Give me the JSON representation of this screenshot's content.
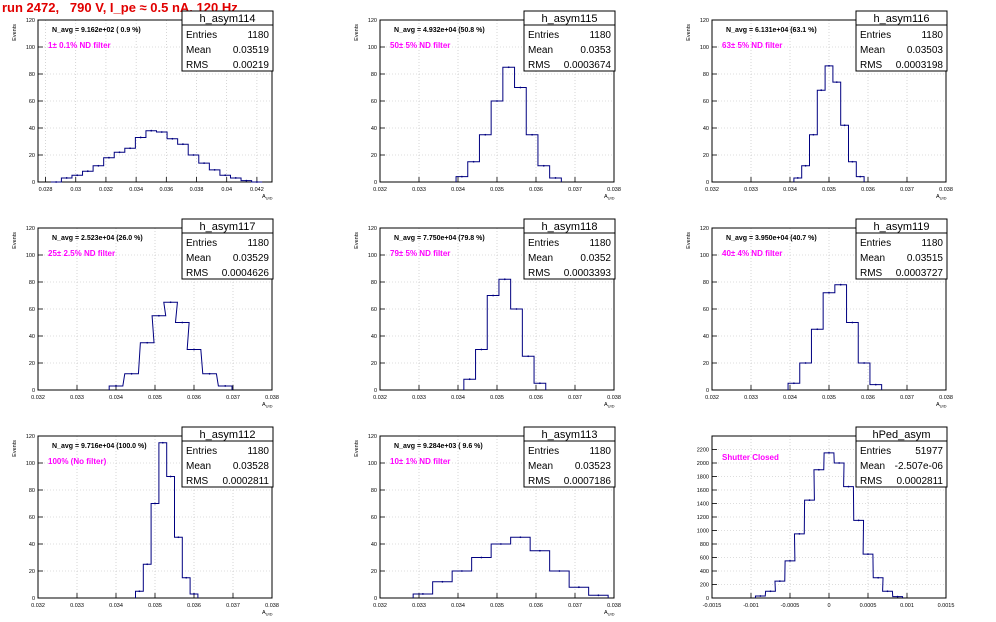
{
  "run_title": "run 2472,   790 V, I_pe ≈ 0.5 nA, 120 Hz",
  "colors": {
    "line": "#000080",
    "label": "#ff00ff",
    "title": "#e10000",
    "grid": "#bbbbbb"
  },
  "stat_labels": {
    "entries": "Entries",
    "mean": "Mean",
    "rms": "RMS"
  },
  "chart_data": [
    {
      "type": "histogram",
      "hist": "h_asym114",
      "n_avg": "N_avg = 9.162e+02 ( 0.9 %)",
      "filter": "1± 0.1% ND filter",
      "entries": "1180",
      "mean": "0.03519",
      "rms": "0.00219",
      "ylabel": "Events",
      "xlabel": "A_UID",
      "grid": true,
      "xlim": [
        0.0275,
        0.043
      ],
      "ylim": [
        0,
        120
      ],
      "xticks": [
        0.028,
        0.03,
        0.032,
        0.034,
        0.036,
        0.038,
        0.04,
        0.042
      ],
      "xtick_labels": [
        "0.028",
        "0.03",
        "0.032",
        "0.034",
        "0.036",
        "0.038",
        "0.04",
        "0.042"
      ],
      "yticks": [
        0,
        20,
        40,
        60,
        80,
        100,
        120
      ],
      "x": [
        0.0287,
        0.0294,
        0.0301,
        0.0308,
        0.0315,
        0.0322,
        0.0329,
        0.0336,
        0.0343,
        0.035,
        0.0357,
        0.0364,
        0.0371,
        0.0378,
        0.0385,
        0.0392,
        0.0399,
        0.0406,
        0.0413,
        0.042
      ],
      "y": [
        0,
        3,
        5,
        8,
        12,
        18,
        22,
        25,
        33,
        38,
        37,
        32,
        28,
        20,
        14,
        9,
        5,
        3,
        1,
        0
      ]
    },
    {
      "type": "histogram",
      "hist": "h_asym115",
      "n_avg": "N_avg = 4.932e+04 (50.8 %)",
      "filter": "50± 5% ND filter",
      "entries": "1180",
      "mean": "0.0353",
      "rms": "0.0003674",
      "ylabel": "Events",
      "xlabel": "A_UID",
      "grid": true,
      "xlim": [
        0.032,
        0.038
      ],
      "ylim": [
        0,
        120
      ],
      "xticks": [
        0.032,
        0.033,
        0.034,
        0.035,
        0.036,
        0.037,
        0.038
      ],
      "xtick_labels": [
        "0.032",
        "0.033",
        "0.034",
        "0.035",
        "0.036",
        "0.037",
        "0.038"
      ],
      "yticks": [
        0,
        20,
        40,
        60,
        80,
        100,
        120
      ],
      "x": [
        0.0341,
        0.0344,
        0.0347,
        0.035,
        0.0353,
        0.0356,
        0.0359,
        0.0362,
        0.0365
      ],
      "y": [
        4,
        15,
        35,
        60,
        85,
        70,
        35,
        12,
        3
      ]
    },
    {
      "type": "histogram",
      "hist": "h_asym116",
      "n_avg": "N_avg = 6.131e+04 (63.1 %)",
      "filter": "63± 5% ND filter",
      "entries": "1180",
      "mean": "0.03503",
      "rms": "0.0003198",
      "ylabel": "Events",
      "xlabel": "A_UID",
      "grid": true,
      "xlim": [
        0.032,
        0.038
      ],
      "ylim": [
        0,
        120
      ],
      "xticks": [
        0.032,
        0.033,
        0.034,
        0.035,
        0.036,
        0.037,
        0.038
      ],
      "xtick_labels": [
        "0.032",
        "0.033",
        "0.034",
        "0.035",
        "0.036",
        "0.037",
        "0.038"
      ],
      "yticks": [
        0,
        20,
        40,
        60,
        80,
        100,
        120
      ],
      "x": [
        0.0342,
        0.0344,
        0.0346,
        0.0348,
        0.035,
        0.0352,
        0.0354,
        0.0356,
        0.0358
      ],
      "y": [
        3,
        12,
        35,
        68,
        86,
        74,
        42,
        15,
        4
      ]
    },
    {
      "type": "histogram",
      "hist": "h_asym117",
      "n_avg": "N_avg = 2.523e+04 (26.0 %)",
      "filter": "25± 2.5% ND filter",
      "entries": "1180",
      "mean": "0.03529",
      "rms": "0.0004626",
      "ylabel": "Events",
      "xlabel": "A_UID",
      "grid": true,
      "xlim": [
        0.032,
        0.038
      ],
      "ylim": [
        0,
        120
      ],
      "xticks": [
        0.032,
        0.033,
        0.034,
        0.035,
        0.036,
        0.037,
        0.038
      ],
      "xtick_labels": [
        "0.032",
        "0.033",
        "0.034",
        "0.035",
        "0.036",
        "0.037",
        "0.038"
      ],
      "yticks": [
        0,
        20,
        40,
        60,
        80,
        100,
        120
      ],
      "x": [
        0.034,
        0.0344,
        0.0348,
        0.0351,
        0.0354,
        0.0357,
        0.036,
        0.0364,
        0.0368
      ],
      "y": [
        3,
        12,
        35,
        55,
        65,
        50,
        30,
        12,
        3
      ]
    },
    {
      "type": "histogram",
      "hist": "h_asym118",
      "n_avg": "N_avg = 7.750e+04 (79.8 %)",
      "filter": "79± 5% ND filter",
      "entries": "1180",
      "mean": "0.0352",
      "rms": "0.0003393",
      "ylabel": "Events",
      "xlabel": "A_UID",
      "grid": true,
      "xlim": [
        0.032,
        0.038
      ],
      "ylim": [
        0,
        120
      ],
      "xticks": [
        0.032,
        0.033,
        0.034,
        0.035,
        0.036,
        0.037,
        0.038
      ],
      "xtick_labels": [
        "0.032",
        "0.033",
        "0.034",
        "0.035",
        "0.036",
        "0.037",
        "0.038"
      ],
      "yticks": [
        0,
        20,
        40,
        60,
        80,
        100,
        120
      ],
      "x": [
        0.0343,
        0.0346,
        0.0349,
        0.0352,
        0.0355,
        0.0358,
        0.0361
      ],
      "y": [
        8,
        30,
        70,
        82,
        60,
        25,
        5
      ]
    },
    {
      "type": "histogram",
      "hist": "h_asym119",
      "n_avg": "N_avg = 3.950e+04 (40.7 %)",
      "filter": "40± 4% ND filter",
      "entries": "1180",
      "mean": "0.03515",
      "rms": "0.0003727",
      "ylabel": "Events",
      "xlabel": "A_UID",
      "grid": true,
      "xlim": [
        0.032,
        0.038
      ],
      "ylim": [
        0,
        120
      ],
      "xticks": [
        0.032,
        0.033,
        0.034,
        0.035,
        0.036,
        0.037,
        0.038
      ],
      "xtick_labels": [
        "0.032",
        "0.033",
        "0.034",
        "0.035",
        "0.036",
        "0.037",
        "0.038"
      ],
      "yticks": [
        0,
        20,
        40,
        60,
        80,
        100,
        120
      ],
      "x": [
        0.0341,
        0.0344,
        0.0347,
        0.035,
        0.0353,
        0.0356,
        0.0359,
        0.0362
      ],
      "y": [
        5,
        20,
        45,
        72,
        78,
        50,
        20,
        4
      ]
    },
    {
      "type": "histogram",
      "hist": "h_asym112",
      "n_avg": "N_avg = 9.716e+04 (100.0 %)",
      "filter": "100% (No filter)",
      "entries": "1180",
      "mean": "0.03528",
      "rms": "0.0002811",
      "ylabel": "Events",
      "xlabel": "A_UID",
      "grid": true,
      "xlim": [
        0.032,
        0.038
      ],
      "ylim": [
        0,
        120
      ],
      "xticks": [
        0.032,
        0.033,
        0.034,
        0.035,
        0.036,
        0.037,
        0.038
      ],
      "xtick_labels": [
        "0.032",
        "0.033",
        "0.034",
        "0.035",
        "0.036",
        "0.037",
        "0.038"
      ],
      "yticks": [
        0,
        20,
        40,
        60,
        80,
        100,
        120
      ],
      "x": [
        0.0346,
        0.0348,
        0.035,
        0.0352,
        0.0354,
        0.0356,
        0.0358,
        0.036
      ],
      "y": [
        5,
        25,
        70,
        115,
        90,
        45,
        15,
        3
      ]
    },
    {
      "type": "histogram",
      "hist": "h_asym113",
      "n_avg": "N_avg = 9.284e+03 ( 9.6 %)",
      "filter": "10± 1% ND filter",
      "entries": "1180",
      "mean": "0.03523",
      "rms": "0.0007186",
      "ylabel": "Events",
      "xlabel": "A_UID",
      "grid": true,
      "xlim": [
        0.032,
        0.038
      ],
      "ylim": [
        0,
        120
      ],
      "xticks": [
        0.032,
        0.033,
        0.034,
        0.035,
        0.036,
        0.037,
        0.038
      ],
      "xtick_labels": [
        "0.032",
        "0.033",
        "0.034",
        "0.035",
        "0.036",
        "0.037",
        "0.038"
      ],
      "yticks": [
        0,
        20,
        40,
        60,
        80,
        100,
        120
      ],
      "x": [
        0.0331,
        0.0336,
        0.0341,
        0.0346,
        0.0351,
        0.0356,
        0.0361,
        0.0366,
        0.0371,
        0.0376
      ],
      "y": [
        3,
        12,
        20,
        30,
        40,
        45,
        35,
        20,
        8,
        2
      ]
    },
    {
      "type": "histogram",
      "hist": "hPed_asym",
      "n_avg": "",
      "filter": "Shutter Closed",
      "entries": "51977",
      "mean": "-2.507e-06",
      "rms": "0.0002811",
      "ylabel": "",
      "xlabel": "",
      "grid": true,
      "xlim": [
        -0.0015,
        0.0015
      ],
      "ylim": [
        0,
        2400
      ],
      "xticks": [
        -0.0015,
        -0.001,
        -0.0005,
        0,
        0.0005,
        0.001,
        0.0015
      ],
      "xtick_labels": [
        "-0.0015",
        "-0.001",
        "-0.0005",
        "0",
        "0.0005",
        "0.001",
        "0.0015"
      ],
      "yticks": [
        0,
        200,
        400,
        600,
        800,
        1000,
        1200,
        1400,
        1600,
        1800,
        2000,
        2200
      ],
      "x": [
        -0.00088,
        -0.00075,
        -0.00063,
        -0.0005,
        -0.00038,
        -0.00025,
        -0.00013,
        0,
        0.00013,
        0.00025,
        0.00038,
        0.0005,
        0.00063,
        0.00075,
        0.00088
      ],
      "y": [
        30,
        100,
        250,
        550,
        950,
        1450,
        1900,
        2150,
        2000,
        1650,
        1150,
        650,
        300,
        100,
        20
      ]
    }
  ]
}
